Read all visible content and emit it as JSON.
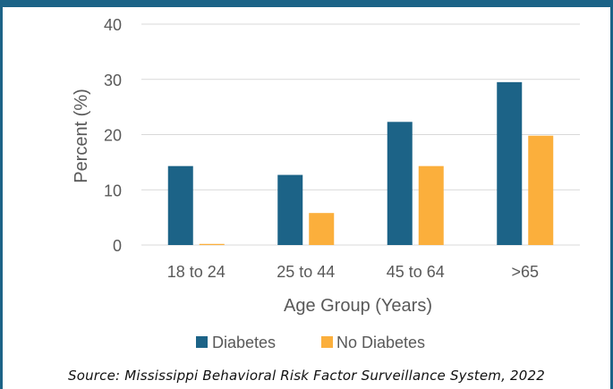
{
  "chart_data": {
    "type": "bar",
    "categories": [
      "18 to 24",
      "25 to 44",
      "45 to 64",
      ">65"
    ],
    "series": [
      {
        "name": "Diabetes",
        "values": [
          14.3,
          12.7,
          22.3,
          29.5
        ],
        "color": "#1c6387"
      },
      {
        "name": "No Diabetes",
        "values": [
          0.2,
          5.8,
          14.3,
          19.8
        ],
        "color": "#fbaf3c"
      }
    ],
    "title": "",
    "xlabel": "Age Group (Years)",
    "ylabel": "Percent (%)",
    "ylim": [
      0,
      40
    ],
    "yticks": [
      0,
      10,
      20,
      30,
      40
    ],
    "grid": true,
    "legend": "bottom"
  },
  "source": "Source: Mississippi Behavioral Risk Factor Surveillance System, 2022",
  "colors": {
    "frame": "#1c6387",
    "gridline": "#d9d9d9",
    "axis_text": "#595959"
  }
}
